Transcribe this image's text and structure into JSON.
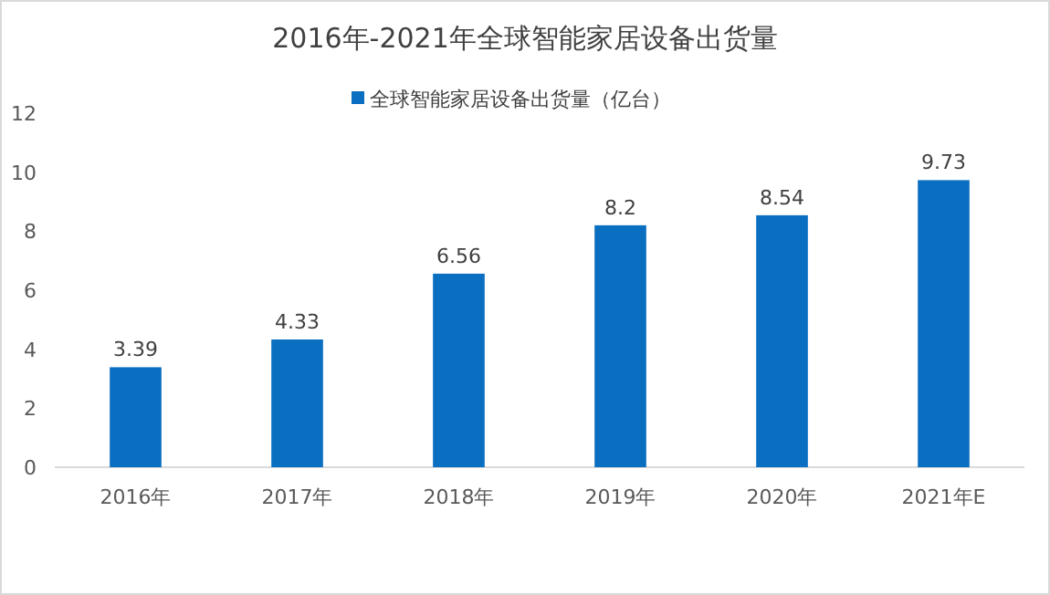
{
  "chart_data": {
    "type": "bar",
    "title": "2016年-2021年全球智能家居设备出货量",
    "categories": [
      "2016年",
      "2017年",
      "2018年",
      "2019年",
      "2020年",
      "2021年E"
    ],
    "series": [
      {
        "name": "全球智能家居设备出货量（亿台）",
        "color": "#0a6fc1",
        "values": [
          3.39,
          4.33,
          6.56,
          8.2,
          8.54,
          9.73
        ]
      }
    ],
    "ylim": [
      0,
      12
    ],
    "yticks": [
      0,
      2,
      4,
      6,
      8,
      10,
      12
    ],
    "grid": false,
    "legend": "top",
    "data_labels": true
  }
}
